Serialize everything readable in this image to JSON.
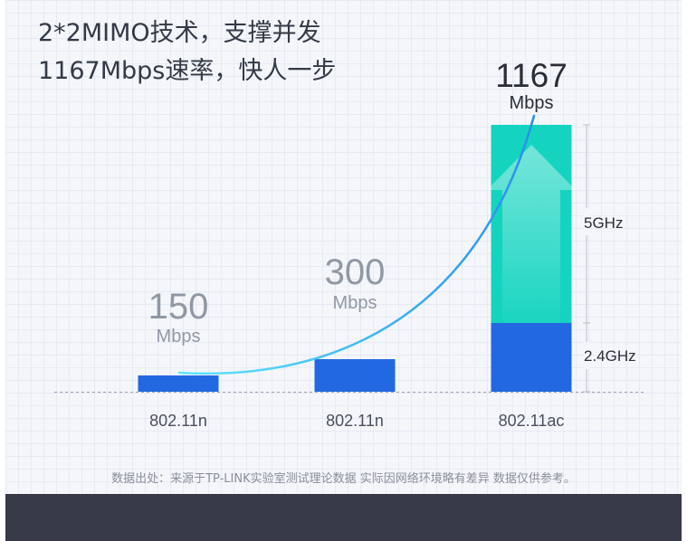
{
  "headline": {
    "line1": "2*2MIMO技术，支撑并发",
    "line2": "1167Mbps速率，快人一步"
  },
  "chart_data": {
    "type": "bar",
    "categories": [
      "802.11n",
      "802.11n",
      "802.11ac"
    ],
    "series": [
      {
        "name": "2.4GHz",
        "values": [
          150,
          300,
          300
        ]
      },
      {
        "name": "5GHz",
        "values": [
          0,
          0,
          867
        ]
      }
    ],
    "totals": [
      "150",
      "300",
      "1167"
    ],
    "unit": "Mbps",
    "ylim": [
      0,
      1167
    ],
    "grid": false,
    "legend": "right",
    "colors": {
      "band24": "#2268e0",
      "band5": "#14d4c0",
      "curve": "#34c8f0"
    }
  },
  "footnote": "数据出处：来源于TP-LINK实验室测试理论数据 实际因网络环境略有差异 数据仅供参考。"
}
